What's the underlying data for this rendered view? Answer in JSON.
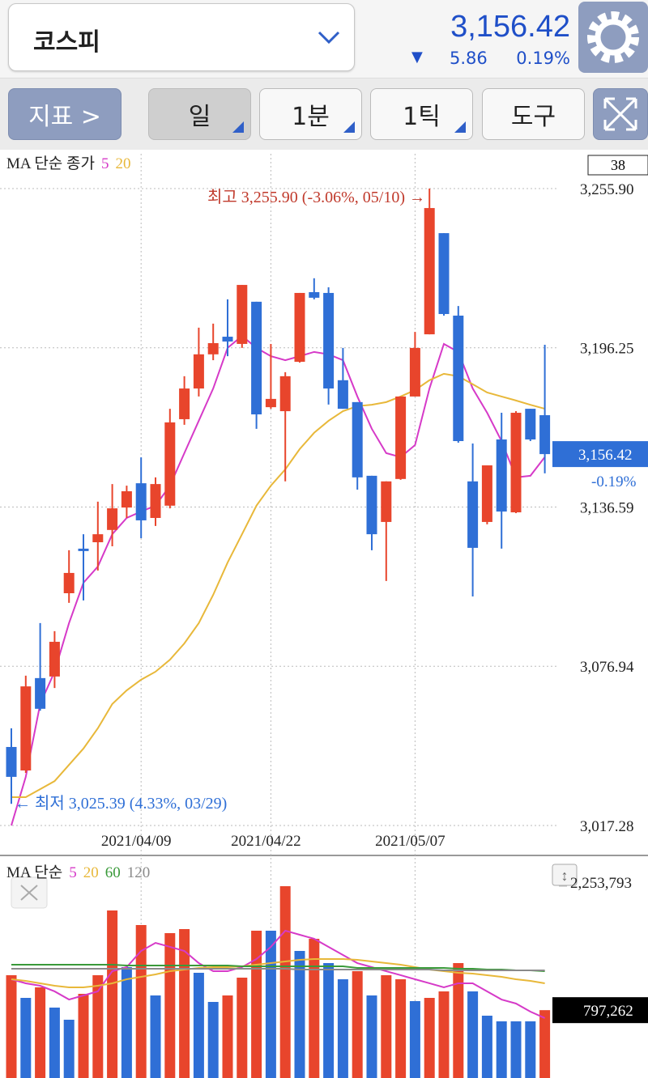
{
  "header": {
    "title": "코스피",
    "price": "3,156.42",
    "change": "5.86",
    "change_pct": "0.19%"
  },
  "toolbar": {
    "buttons": [
      "지표 >",
      "일",
      "1분",
      "1틱",
      "도구"
    ]
  },
  "chart_data": [
    {
      "type": "candlestick",
      "legend_title": "MA 단순 종가",
      "badge": "38",
      "categories": [
        null,
        null,
        null,
        null,
        null,
        null,
        null,
        null,
        null,
        "2021/04/09",
        null,
        null,
        null,
        null,
        null,
        null,
        null,
        null,
        "2021/04/22",
        null,
        null,
        null,
        null,
        null,
        null,
        null,
        null,
        null,
        "2021/05/07",
        null,
        null,
        null,
        null,
        null,
        null,
        null,
        null,
        null
      ],
      "open": [
        3046.7,
        3037.9,
        3072.5,
        3073.1,
        3104.3,
        3121.0,
        3123.4,
        3128.0,
        3136.4,
        3145.5,
        3132.5,
        3137.1,
        3169.5,
        3181.0,
        3193.8,
        3200.4,
        3197.7,
        3213.5,
        3174.0,
        3172.5,
        3191.0,
        3217.1,
        3216.8,
        3184.1,
        3175.9,
        3148.3,
        3131.0,
        3147.1,
        3178.0,
        3201.3,
        3239.2,
        3208.3,
        3146.2,
        3131.0,
        3161.9,
        3134.6,
        3173.4,
        3171.0
      ],
      "high": [
        3053.7,
        3073.4,
        3093.1,
        3090.1,
        3120.4,
        3126.4,
        3138.6,
        3145.2,
        3144.6,
        3155.2,
        3147.7,
        3173.4,
        3185.6,
        3203.8,
        3205.3,
        3214.4,
        3219.8,
        3213.5,
        3197.7,
        3187.1,
        3216.8,
        3222.3,
        3218.9,
        3196.2,
        3175.9,
        3148.3,
        3146.2,
        3178.0,
        3202.2,
        3255.9,
        3239.2,
        3211.9,
        3160.4,
        3152.2,
        3171.9,
        3172.5,
        3173.4,
        3197.4
      ],
      "low": [
        3025.4,
        3037.0,
        3060.3,
        3068.8,
        3100.7,
        3101.6,
        3112.8,
        3121.9,
        3132.5,
        3124.9,
        3129.5,
        3136.1,
        3167.4,
        3178.0,
        3191.6,
        3193.1,
        3196.2,
        3165.9,
        3173.4,
        3146.2,
        3190.7,
        3214.4,
        3175.0,
        3173.4,
        3143.1,
        3120.4,
        3108.9,
        3146.8,
        3178.0,
        3201.3,
        3208.3,
        3160.7,
        3103.1,
        3130.1,
        3121.0,
        3134.3,
        3161.3,
        3149.2
      ],
      "close": [
        3035.5,
        3069.4,
        3061.0,
        3086.1,
        3111.9,
        3120.1,
        3126.4,
        3136.1,
        3142.5,
        3131.6,
        3145.2,
        3168.3,
        3181.0,
        3193.8,
        3198.0,
        3198.6,
        3219.8,
        3171.3,
        3177.1,
        3185.6,
        3216.8,
        3215.0,
        3181.0,
        3173.4,
        3147.7,
        3126.4,
        3146.2,
        3178.0,
        3196.2,
        3248.6,
        3208.9,
        3161.3,
        3121.3,
        3152.2,
        3134.9,
        3171.9,
        3161.9,
        3156.42
      ],
      "up_color": "#e8452c",
      "down_color": "#2f6fd6",
      "ma_series": [
        {
          "name": "5",
          "color": "#d63ac8",
          "values": [
            3017.3,
            3035.5,
            3062.8,
            3074.9,
            3093.1,
            3108.2,
            3114.3,
            3126.4,
            3132.5,
            3134.9,
            3137.1,
            3144.6,
            3156.8,
            3168.9,
            3181.0,
            3196.2,
            3200.7,
            3196.2,
            3193.1,
            3191.6,
            3193.1,
            3194.7,
            3193.8,
            3191.6,
            3178.0,
            3165.9,
            3156.8,
            3155.3,
            3159.8,
            3181.0,
            3197.7,
            3194.7,
            3181.0,
            3171.9,
            3161.3,
            3147.7,
            3148.3,
            3155.3
          ]
        },
        {
          "name": "20",
          "color": "#e8b83a",
          "values": [
            3027.9,
            3027.9,
            3030.9,
            3033.9,
            3040.0,
            3046.1,
            3053.7,
            3062.8,
            3067.9,
            3071.9,
            3074.9,
            3079.4,
            3085.5,
            3093.1,
            3103.7,
            3115.8,
            3126.4,
            3137.1,
            3144.6,
            3150.7,
            3158.3,
            3164.4,
            3168.9,
            3172.5,
            3174.4,
            3174.9,
            3175.9,
            3178.0,
            3180.4,
            3184.1,
            3186.5,
            3185.6,
            3182.6,
            3179.5,
            3178.0,
            3176.5,
            3174.9,
            3173.4
          ]
        }
      ],
      "ylim": [
        3017.28,
        3255.9
      ],
      "yticks": [
        {
          "value": 3255.9,
          "label": "3,255.90"
        },
        {
          "value": 3196.25,
          "label": "3,196.25"
        },
        {
          "value": 3136.59,
          "label": "3,136.59"
        },
        {
          "value": 3076.94,
          "label": "3,076.94"
        },
        {
          "value": 3017.28,
          "label": "3,017.28"
        }
      ],
      "grid": true,
      "current": {
        "value": 3156.42,
        "label": "3,156.42",
        "change_label": "-0.19%"
      },
      "annotations": [
        {
          "text": "최고 3,255.90 (-3.06%, 05/10) →",
          "color": "#c0392b"
        },
        {
          "text": "← 최저 3,025.39 (4.33%, 03/29)",
          "color": "#2f6fd6"
        }
      ]
    },
    {
      "type": "bar",
      "legend_title": "MA 단순",
      "values": [
        1207732,
        941460,
        1065086,
        827344,
        684698,
        989009,
        1207732,
        1968508,
        1302829,
        1797333,
        969989,
        1702236,
        1749785,
        1236261,
        893912,
        969989,
        1179203,
        1730765,
        1730765,
        2253793,
        1493023,
        1635668,
        1350377,
        1160183,
        1255280,
        969989,
        1207732,
        1160183,
        903422,
        941460,
        1017538,
        1350377,
        1017538,
        732247,
        665679,
        665679,
        665679,
        797262
      ],
      "bar_colors": [
        "#e8452c",
        "#2f6fd6",
        "#e8452c",
        "#2f6fd6",
        "#2f6fd6",
        "#e8452c",
        "#e8452c",
        "#e8452c",
        "#2f6fd6",
        "#e8452c",
        "#2f6fd6",
        "#e8452c",
        "#e8452c",
        "#2f6fd6",
        "#2f6fd6",
        "#e8452c",
        "#e8452c",
        "#e8452c",
        "#2f6fd6",
        "#e8452c",
        "#2f6fd6",
        "#e8452c",
        "#2f6fd6",
        "#2f6fd6",
        "#e8452c",
        "#2f6fd6",
        "#e8452c",
        "#e8452c",
        "#2f6fd6",
        "#e8452c",
        "#e8452c",
        "#e8452c",
        "#2f6fd6",
        "#2f6fd6",
        "#2f6fd6",
        "#2f6fd6",
        "#2f6fd6",
        "#e8452c"
      ],
      "series": [
        {
          "name": "5",
          "color": "#d63ac8",
          "values": [
            1160000,
            1113000,
            1084000,
            1018000,
            922000,
            970000,
            1018000,
            1255000,
            1303000,
            1493000,
            1588000,
            1541000,
            1493000,
            1350000,
            1255000,
            1255000,
            1303000,
            1398000,
            1541000,
            1731000,
            1683000,
            1636000,
            1541000,
            1445000,
            1350000,
            1303000,
            1255000,
            1208000,
            1160000,
            1113000,
            1065000,
            1113000,
            1113000,
            1018000,
            922000,
            875000,
            780000,
            704000
          ]
        },
        {
          "name": "20",
          "color": "#e8b83a",
          "values": [
            1160000,
            1141000,
            1113000,
            1084000,
            1065000,
            1065000,
            1084000,
            1113000,
            1160000,
            1189000,
            1217000,
            1255000,
            1274000,
            1293000,
            1303000,
            1303000,
            1312000,
            1331000,
            1350000,
            1369000,
            1388000,
            1398000,
            1398000,
            1398000,
            1388000,
            1369000,
            1350000,
            1331000,
            1303000,
            1274000,
            1255000,
            1236000,
            1227000,
            1208000,
            1189000,
            1160000,
            1141000,
            1113000
          ]
        },
        {
          "name": "60",
          "color": "#3a9a3a",
          "values": [
            1331000,
            1331000,
            1331000,
            1331000,
            1331000,
            1331000,
            1331000,
            1331000,
            1322000,
            1322000,
            1322000,
            1322000,
            1322000,
            1322000,
            1322000,
            1322000,
            1312000,
            1312000,
            1312000,
            1312000,
            1312000,
            1312000,
            1312000,
            1312000,
            1293000,
            1293000,
            1293000,
            1293000,
            1293000,
            1293000,
            1293000,
            1284000,
            1284000,
            1274000,
            1274000,
            1265000,
            1265000,
            1255000
          ]
        },
        {
          "name": "120",
          "color": "#8a8a8a",
          "values": [
            1284000,
            1284000,
            1284000,
            1284000,
            1284000,
            1284000,
            1284000,
            1284000,
            1284000,
            1284000,
            1284000,
            1284000,
            1284000,
            1284000,
            1284000,
            1284000,
            1284000,
            1284000,
            1284000,
            1284000,
            1274000,
            1274000,
            1274000,
            1274000,
            1274000,
            1274000,
            1274000,
            1274000,
            1274000,
            1274000,
            1265000,
            1265000,
            1265000,
            1265000,
            1265000,
            1265000,
            1265000,
            1265000
          ]
        }
      ],
      "ylim": [
        0,
        2253793
      ],
      "yticks": [
        {
          "value": 2253793,
          "label": "2,253,793"
        }
      ],
      "current": {
        "value": 797262,
        "label": "797,262"
      }
    }
  ]
}
